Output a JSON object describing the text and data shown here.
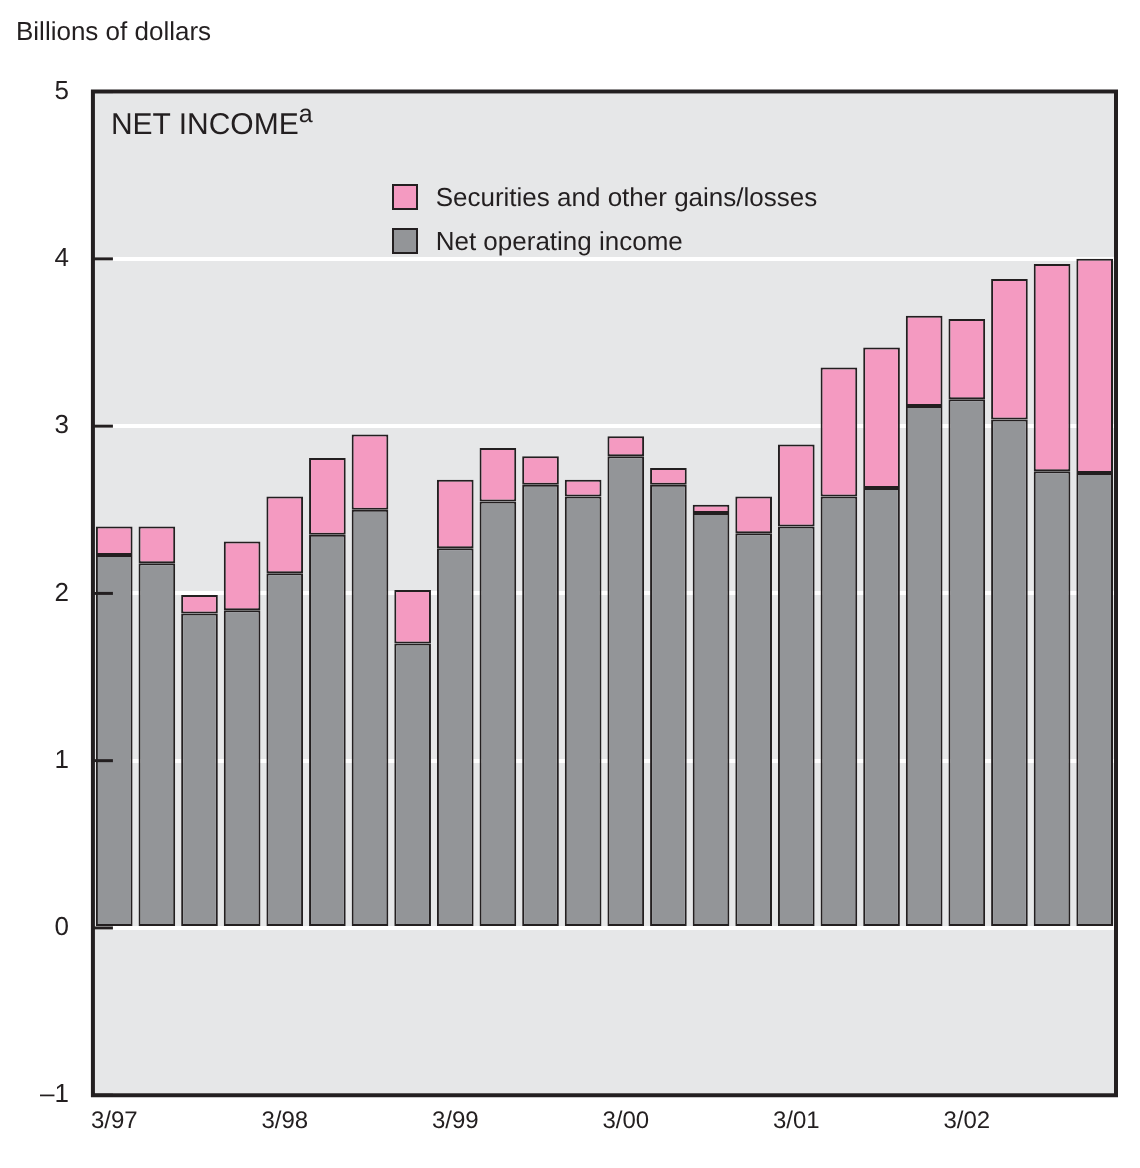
{
  "chart_data": {
    "type": "bar",
    "title": "NET INCOME$^{a}$",
    "ylabel": "Billions of dollars",
    "stacked": true,
    "categories": [
      "3/97",
      null,
      null,
      null,
      "3/98",
      null,
      null,
      null,
      "3/99",
      null,
      null,
      null,
      "3/00",
      null,
      null,
      null,
      "3/01",
      null,
      null,
      null,
      "3/02",
      null,
      null,
      null
    ],
    "series": [
      {
        "name": "Net operating income",
        "color": "#939598",
        "values": [
          2.23,
          2.18,
          1.88,
          1.9,
          2.12,
          2.35,
          2.5,
          1.7,
          2.27,
          2.55,
          2.65,
          2.58,
          2.82,
          2.65,
          2.48,
          2.36,
          2.4,
          2.58,
          2.63,
          3.12,
          3.16,
          3.04,
          2.73,
          2.72
        ]
      },
      {
        "name": "Securities and other gains/losses",
        "color": "#f49ac1",
        "values": [
          0.17,
          0.22,
          0.11,
          0.41,
          0.46,
          0.46,
          0.45,
          0.32,
          0.41,
          0.32,
          0.17,
          0.1,
          0.12,
          0.1,
          0.05,
          0.22,
          0.49,
          0.77,
          0.84,
          0.54,
          0.48,
          0.84,
          1.24,
          1.28
        ]
      }
    ],
    "ylim": [
      -1,
      5
    ],
    "yticks": [
      {
        "value": -1,
        "label": "–1"
      },
      0,
      1,
      2,
      3,
      4,
      5
    ],
    "grid": "y",
    "legend": "top"
  }
}
